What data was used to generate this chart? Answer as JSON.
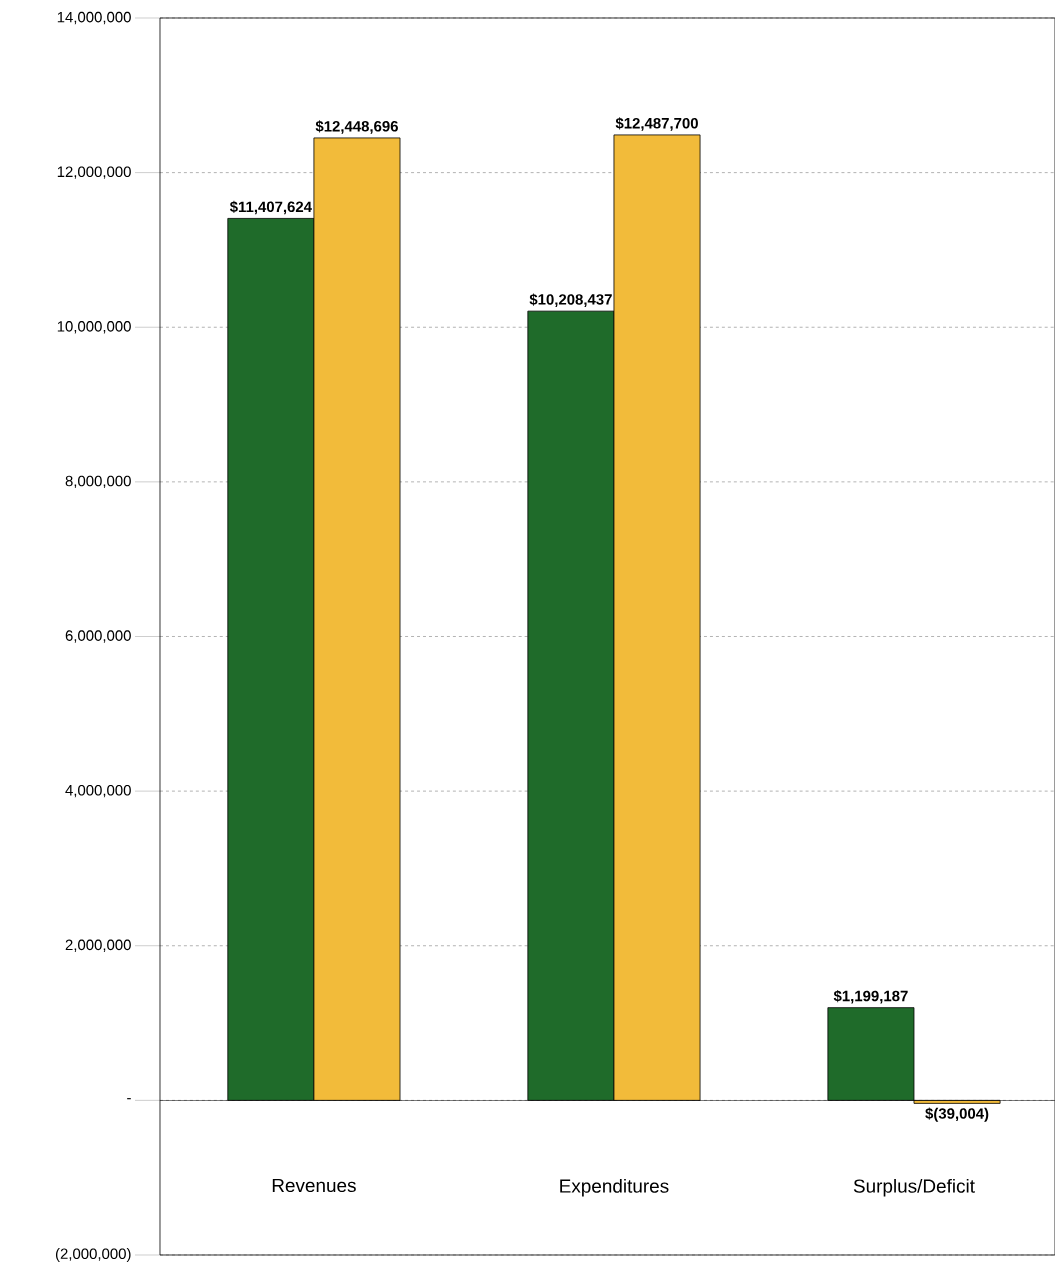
{
  "chart_data": {
    "type": "bar",
    "categories": [
      "Revenues",
      "Expenditures",
      "Surplus/Deficit"
    ],
    "series": [
      {
        "color": "#1f6b2a",
        "values": [
          11407624,
          10208437,
          1199187
        ],
        "value_labels": [
          "$11,407,624",
          "$10,208,437",
          "$1,199,187"
        ]
      },
      {
        "color": "#f2bb3a",
        "values": [
          12448696,
          12487700,
          -39004
        ],
        "value_labels": [
          "$12,448,696",
          "$12,487,700",
          "$(39,004)"
        ]
      }
    ],
    "ylim": [
      -2000000,
      14000000
    ],
    "yticks": [
      {
        "value": -2000000,
        "label": "(2,000,000)"
      },
      {
        "value": 0,
        "label": "-"
      },
      {
        "value": 2000000,
        "label": "2,000,000"
      },
      {
        "value": 4000000,
        "label": "4,000,000"
      },
      {
        "value": 6000000,
        "label": "6,000,000"
      },
      {
        "value": 8000000,
        "label": "8,000,000"
      },
      {
        "value": 10000000,
        "label": "10,000,000"
      },
      {
        "value": 12000000,
        "label": "12,000,000"
      },
      {
        "value": 14000000,
        "label": "14,000,000"
      }
    ],
    "grid": "y"
  }
}
